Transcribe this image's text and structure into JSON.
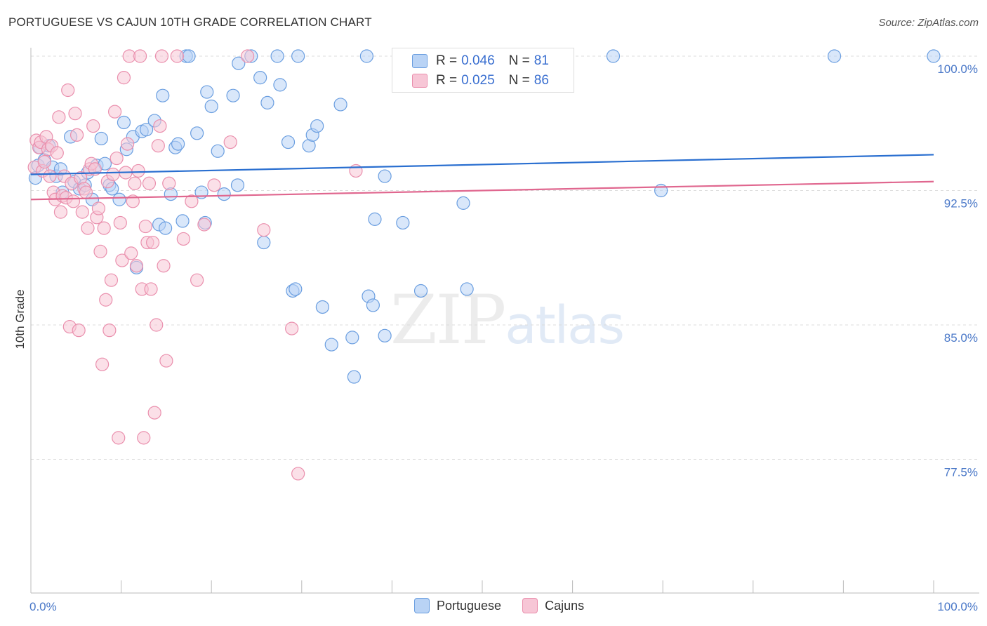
{
  "header": {
    "title": "PORTUGUESE VS CAJUN 10TH GRADE CORRELATION CHART",
    "source": "Source: ZipAtlas.com"
  },
  "colors": {
    "portuguese_fill": "#b9d3f5",
    "portuguese_stroke": "#6a9ee0",
    "portuguese_line": "#2a6fd0",
    "cajun_fill": "#f7c6d6",
    "cajun_stroke": "#ea8fad",
    "cajun_line": "#e0678f",
    "accent_text": "#3a6fd0"
  },
  "legend": {
    "rows": [
      {
        "r_label": "R =",
        "r_value": "0.046",
        "n_label": "N =",
        "n_value": "81"
      },
      {
        "r_label": "R =",
        "r_value": "0.025",
        "n_label": "N =",
        "n_value": "86"
      }
    ],
    "bottom": [
      "Portuguese",
      "Cajuns"
    ]
  },
  "watermark": {
    "zip": "ZIP",
    "atlas": "atlas"
  },
  "chart_data": {
    "type": "scatter",
    "title": "PORTUGUESE VS CAJUN 10TH GRADE CORRELATION CHART",
    "xlabel": "",
    "ylabel": "10th Grade",
    "xlim": [
      0,
      100
    ],
    "ylim": [
      71.5,
      100.5
    ],
    "x_tick_labels": [
      {
        "value": 0,
        "label": "0.0%"
      },
      {
        "value": 100,
        "label": "100.0%"
      }
    ],
    "y_tick_labels": [
      {
        "value": 100,
        "label": "100.0%"
      },
      {
        "value": 92.5,
        "label": "92.5%"
      },
      {
        "value": 85,
        "label": "85.0%"
      },
      {
        "value": 77.5,
        "label": "77.5%"
      }
    ],
    "series": [
      {
        "name": "Portuguese",
        "trend": [
          [
            0,
            93.4
          ],
          [
            100,
            94.5
          ]
        ],
        "points": [
          [
            0.5,
            93.2
          ],
          [
            0.8,
            93.9
          ],
          [
            1.0,
            94.9
          ],
          [
            1.5,
            94.2
          ],
          [
            2.0,
            95.0
          ],
          [
            2.4,
            93.8
          ],
          [
            2.8,
            93.3
          ],
          [
            3.5,
            92.4
          ],
          [
            3.3,
            93.7
          ],
          [
            4.4,
            95.5
          ],
          [
            4.8,
            93.0
          ],
          [
            5.4,
            92.6
          ],
          [
            6.0,
            92.8
          ],
          [
            6.3,
            93.5
          ],
          [
            6.8,
            92.0
          ],
          [
            7.3,
            93.9
          ],
          [
            7.8,
            95.4
          ],
          [
            8.2,
            94.0
          ],
          [
            8.7,
            92.8
          ],
          [
            9.0,
            92.6
          ],
          [
            9.8,
            92.0
          ],
          [
            10.3,
            96.3
          ],
          [
            10.6,
            94.8
          ],
          [
            11.3,
            95.5
          ],
          [
            11.7,
            88.2
          ],
          [
            12.3,
            95.8
          ],
          [
            12.8,
            95.9
          ],
          [
            13.7,
            96.4
          ],
          [
            14.2,
            90.6
          ],
          [
            14.6,
            97.8
          ],
          [
            14.9,
            90.4
          ],
          [
            15.5,
            92.3
          ],
          [
            16.0,
            94.9
          ],
          [
            16.3,
            95.1
          ],
          [
            16.8,
            90.8
          ],
          [
            17.2,
            100.0
          ],
          [
            17.5,
            100.0
          ],
          [
            18.4,
            95.7
          ],
          [
            18.9,
            92.4
          ],
          [
            19.3,
            90.7
          ],
          [
            19.5,
            98.0
          ],
          [
            20.0,
            97.2
          ],
          [
            20.7,
            94.7
          ],
          [
            21.4,
            92.3
          ],
          [
            22.4,
            97.8
          ],
          [
            22.9,
            92.8
          ],
          [
            23.0,
            99.6
          ],
          [
            24.4,
            100.0
          ],
          [
            25.4,
            98.8
          ],
          [
            25.8,
            89.6
          ],
          [
            26.2,
            97.4
          ],
          [
            27.3,
            100.0
          ],
          [
            27.6,
            98.4
          ],
          [
            28.5,
            95.2
          ],
          [
            29.0,
            86.9
          ],
          [
            29.3,
            87.0
          ],
          [
            29.6,
            100.0
          ],
          [
            30.8,
            95.0
          ],
          [
            31.2,
            95.6
          ],
          [
            31.7,
            96.1
          ],
          [
            32.3,
            86.0
          ],
          [
            33.3,
            83.9
          ],
          [
            34.3,
            97.3
          ],
          [
            35.6,
            84.3
          ],
          [
            35.8,
            82.1
          ],
          [
            37.2,
            100.0
          ],
          [
            37.4,
            86.6
          ],
          [
            37.9,
            86.1
          ],
          [
            38.1,
            90.9
          ],
          [
            39.2,
            93.3
          ],
          [
            39.2,
            84.4
          ],
          [
            41.2,
            90.7
          ],
          [
            43.2,
            86.9
          ],
          [
            45.4,
            100.0
          ],
          [
            47.9,
            91.8
          ],
          [
            48.3,
            87.0
          ],
          [
            51.3,
            100.0
          ],
          [
            64.5,
            100.0
          ],
          [
            69.8,
            92.5
          ],
          [
            89.0,
            100.0
          ],
          [
            100.0,
            100.0
          ]
        ]
      },
      {
        "name": "Cajuns",
        "trend": [
          [
            0,
            92.0
          ],
          [
            100,
            93.0
          ]
        ],
        "points": [
          [
            0.4,
            93.8
          ],
          [
            0.6,
            95.3
          ],
          [
            0.9,
            94.9
          ],
          [
            1.1,
            95.2
          ],
          [
            1.3,
            93.6
          ],
          [
            1.5,
            94.1
          ],
          [
            1.7,
            95.5
          ],
          [
            1.9,
            94.8
          ],
          [
            2.1,
            93.3
          ],
          [
            2.3,
            95.0
          ],
          [
            2.5,
            92.4
          ],
          [
            2.7,
            92.0
          ],
          [
            2.9,
            94.6
          ],
          [
            3.1,
            96.6
          ],
          [
            3.3,
            91.3
          ],
          [
            3.5,
            92.2
          ],
          [
            3.7,
            93.3
          ],
          [
            3.9,
            92.1
          ],
          [
            4.1,
            98.1
          ],
          [
            4.3,
            84.9
          ],
          [
            4.5,
            92.9
          ],
          [
            4.7,
            91.9
          ],
          [
            4.9,
            96.8
          ],
          [
            5.1,
            95.6
          ],
          [
            5.3,
            84.7
          ],
          [
            5.5,
            93.2
          ],
          [
            5.7,
            91.3
          ],
          [
            5.9,
            92.6
          ],
          [
            6.1,
            92.4
          ],
          [
            6.3,
            90.4
          ],
          [
            6.5,
            93.7
          ],
          [
            6.7,
            94.0
          ],
          [
            6.9,
            96.1
          ],
          [
            7.1,
            93.7
          ],
          [
            7.3,
            91.0
          ],
          [
            7.5,
            91.5
          ],
          [
            7.7,
            89.1
          ],
          [
            7.9,
            82.8
          ],
          [
            8.1,
            90.4
          ],
          [
            8.3,
            86.4
          ],
          [
            8.5,
            93.0
          ],
          [
            8.7,
            84.7
          ],
          [
            8.9,
            87.5
          ],
          [
            9.1,
            93.4
          ],
          [
            9.3,
            96.9
          ],
          [
            9.5,
            94.3
          ],
          [
            9.7,
            78.7
          ],
          [
            9.9,
            90.7
          ],
          [
            10.1,
            88.6
          ],
          [
            10.3,
            98.8
          ],
          [
            10.5,
            93.5
          ],
          [
            10.7,
            95.1
          ],
          [
            10.9,
            100.0
          ],
          [
            11.1,
            89.0
          ],
          [
            11.3,
            91.9
          ],
          [
            11.5,
            92.9
          ],
          [
            11.7,
            88.3
          ],
          [
            11.9,
            93.6
          ],
          [
            12.1,
            100.0
          ],
          [
            12.3,
            87.0
          ],
          [
            12.5,
            78.7
          ],
          [
            12.7,
            90.5
          ],
          [
            12.9,
            89.6
          ],
          [
            13.1,
            92.9
          ],
          [
            13.3,
            87.0
          ],
          [
            13.5,
            89.6
          ],
          [
            13.7,
            80.1
          ],
          [
            13.9,
            85.0
          ],
          [
            14.1,
            95.0
          ],
          [
            14.3,
            96.1
          ],
          [
            14.5,
            100.0
          ],
          [
            14.7,
            88.3
          ],
          [
            15.0,
            83.0
          ],
          [
            15.3,
            92.9
          ],
          [
            16.2,
            100.0
          ],
          [
            16.9,
            89.8
          ],
          [
            17.8,
            91.9
          ],
          [
            18.4,
            87.5
          ],
          [
            19.2,
            90.6
          ],
          [
            20.3,
            92.8
          ],
          [
            22.1,
            95.2
          ],
          [
            24.0,
            100.0
          ],
          [
            25.8,
            90.3
          ],
          [
            28.9,
            84.8
          ],
          [
            29.6,
            76.7
          ],
          [
            36.0,
            93.6
          ]
        ]
      }
    ]
  }
}
